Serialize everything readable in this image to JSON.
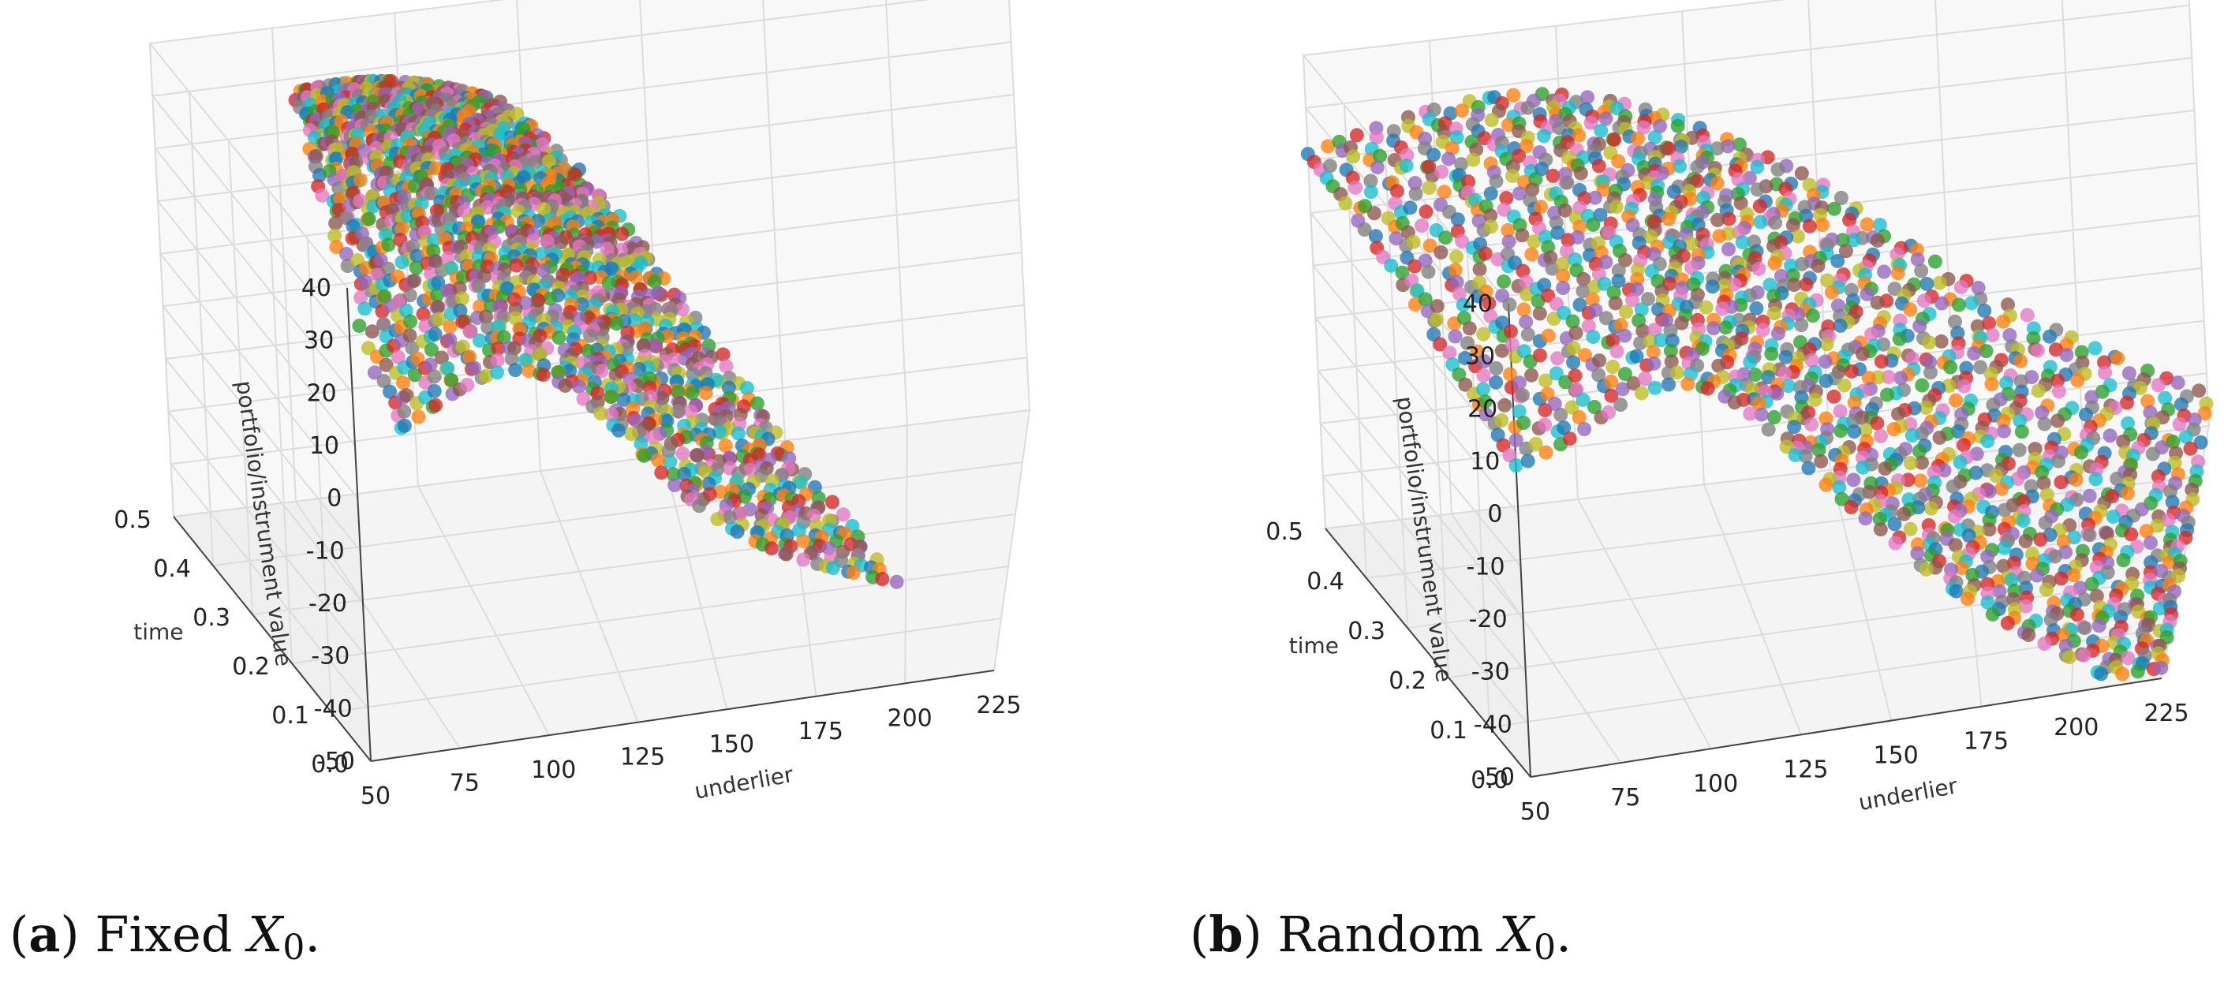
{
  "chart_data": [
    {
      "type": "scatter",
      "subtype": "3d",
      "caption_letter": "a",
      "caption_open": "(",
      "caption_close": ")",
      "caption_text": "Fixed",
      "caption_math": "X",
      "caption_sub": "0",
      "caption_end": ".",
      "xlabel": "underlier",
      "ylabel": "time",
      "zlabel": "portfolio/instrument value",
      "xlim": [
        50,
        225
      ],
      "ylim": [
        0.0,
        0.5
      ],
      "zlim": [
        -50,
        40
      ],
      "xticks": [
        "50",
        "75",
        "100",
        "125",
        "150",
        "175",
        "200",
        "225"
      ],
      "yticks": [
        "0.0",
        "0.1",
        "0.2",
        "0.3",
        "0.4",
        "0.5"
      ],
      "zticks": [
        "40",
        "30",
        "20",
        "10",
        "0",
        "-10",
        "-20",
        "-30",
        "-40",
        "-50"
      ],
      "x_range": [
        52,
        150
      ],
      "surface": "fixed",
      "n_paths": 46,
      "n_steps": 34,
      "grid": true
    },
    {
      "type": "scatter",
      "subtype": "3d",
      "caption_letter": "b",
      "caption_open": "(",
      "caption_close": ")",
      "caption_text": "Random",
      "caption_math": "X",
      "caption_sub": "0",
      "caption_end": ".",
      "xlabel": "underlier",
      "ylabel": "time",
      "zlabel": "portfolio/instrument value",
      "xlim": [
        50,
        225
      ],
      "ylim": [
        0.0,
        0.5
      ],
      "zlim": [
        -50,
        40
      ],
      "xticks": [
        "50",
        "75",
        "100",
        "125",
        "150",
        "175",
        "200",
        "225"
      ],
      "yticks": [
        "0.0",
        "0.1",
        "0.2",
        "0.3",
        "0.4",
        "0.5"
      ],
      "zticks": [
        "40",
        "30",
        "20",
        "10",
        "0",
        "-10",
        "-20",
        "-30",
        "-40",
        "-50"
      ],
      "x_range": [
        50,
        225
      ],
      "surface": "random",
      "n_paths": 46,
      "n_steps": 34,
      "grid": true
    }
  ],
  "palette": [
    "#1f77b4",
    "#ff7f0e",
    "#2ca02c",
    "#d62728",
    "#9467bd",
    "#8c564b",
    "#e377c2",
    "#7f7f7f",
    "#bcbd22",
    "#17becf"
  ]
}
